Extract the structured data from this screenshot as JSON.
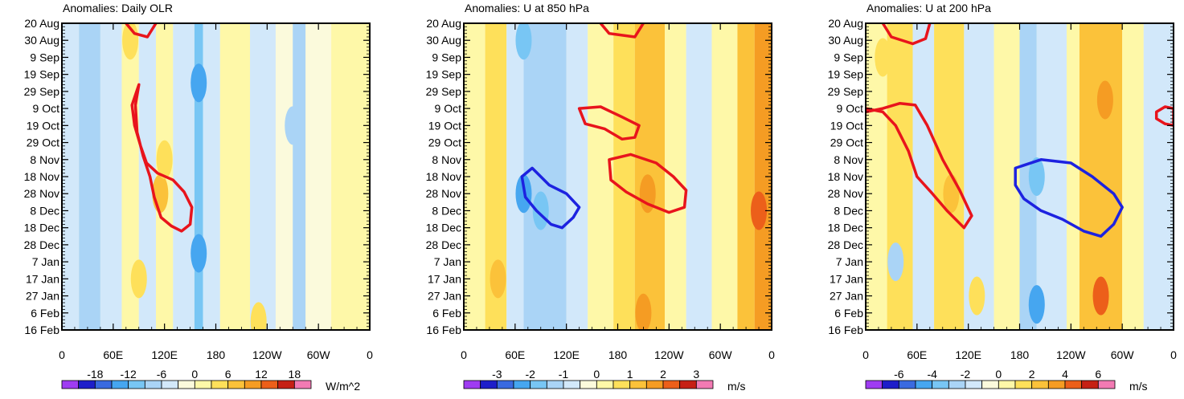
{
  "chart_data": [
    {
      "type": "heatmap",
      "title": "Anomalies: Daily OLR",
      "units": "W/m^2",
      "x_ticks": [
        "0",
        "60E",
        "120E",
        "180",
        "120W",
        "60W",
        "0"
      ],
      "y_ticks": [
        "20 Aug",
        "30 Aug",
        "9 Sep",
        "19 Sep",
        "29 Sep",
        "9 Oct",
        "19 Oct",
        "29 Oct",
        "8 Nov",
        "18 Nov",
        "28 Nov",
        "8 Dec",
        "18 Dec",
        "28 Dec",
        "7 Jan",
        "17 Jan",
        "27 Jan",
        "6 Feb",
        "16 Feb"
      ],
      "x_range_deg": [
        0,
        360
      ],
      "colorbar_labels": [
        "-18",
        "-12",
        "-6",
        "0",
        "6",
        "12",
        "18"
      ],
      "colorbar_levels": [
        -21,
        -18,
        -15,
        -12,
        -9,
        -6,
        -3,
        0,
        3,
        6,
        9,
        12,
        15,
        18,
        21
      ],
      "contour_annotation": "red contours near 60E-150E, Aug to Dec",
      "bands": [
        {
          "lon0": 0,
          "lon1": 20,
          "level": -3
        },
        {
          "lon0": 20,
          "lon1": 45,
          "level": -6
        },
        {
          "lon0": 45,
          "lon1": 70,
          "level": -3
        },
        {
          "lon0": 70,
          "lon1": 90,
          "level": 3
        },
        {
          "lon0": 90,
          "lon1": 110,
          "level": -3
        },
        {
          "lon0": 110,
          "lon1": 130,
          "level": 3
        },
        {
          "lon0": 130,
          "lon1": 155,
          "level": -3
        },
        {
          "lon0": 155,
          "lon1": 165,
          "level": -9
        },
        {
          "lon0": 165,
          "lon1": 185,
          "level": -3
        },
        {
          "lon0": 185,
          "lon1": 220,
          "level": 3
        },
        {
          "lon0": 220,
          "lon1": 250,
          "level": -3
        },
        {
          "lon0": 250,
          "lon1": 270,
          "level": 0
        },
        {
          "lon0": 270,
          "lon1": 285,
          "level": -6
        },
        {
          "lon0": 285,
          "lon1": 315,
          "level": 0
        },
        {
          "lon0": 315,
          "lon1": 360,
          "level": 3
        }
      ],
      "patches": [
        {
          "lon": 160,
          "day": 35,
          "level": -12
        },
        {
          "lon": 160,
          "day": 135,
          "level": -12
        },
        {
          "lon": 115,
          "day": 100,
          "level": 9
        },
        {
          "lon": 120,
          "day": 80,
          "level": 6
        },
        {
          "lon": 80,
          "day": 10,
          "level": 6
        },
        {
          "lon": 90,
          "day": 150,
          "level": 6
        },
        {
          "lon": 270,
          "day": 60,
          "level": -6
        },
        {
          "lon": 230,
          "day": 175,
          "level": 6
        }
      ],
      "contours": [
        {
          "color": "#e8141c",
          "points": [
            [
              75,
              0
            ],
            [
              85,
              6
            ],
            [
              100,
              8
            ],
            [
              110,
              0
            ]
          ]
        },
        {
          "color": "#e8141c",
          "points": [
            [
              90,
              36
            ],
            [
              82,
              48
            ],
            [
              85,
              60
            ],
            [
              92,
              72
            ],
            [
              99,
              82
            ],
            [
              112,
              88
            ],
            [
              130,
              92
            ],
            [
              143,
              99
            ],
            [
              152,
              108
            ],
            [
              150,
              118
            ],
            [
              140,
              122
            ],
            [
              128,
              119
            ],
            [
              116,
              114
            ],
            [
              108,
              102
            ],
            [
              103,
              90
            ],
            [
              95,
              78
            ],
            [
              88,
              64
            ],
            [
              86,
              48
            ]
          ]
        }
      ],
      "days_total": 180
    },
    {
      "type": "heatmap",
      "title": "Anomalies: U at 850 hPa",
      "units": "m/s",
      "x_ticks": [
        "0",
        "60E",
        "120E",
        "180",
        "120W",
        "60W",
        "0"
      ],
      "y_ticks": [
        "20 Aug",
        "30 Aug",
        "9 Sep",
        "19 Sep",
        "29 Sep",
        "9 Oct",
        "19 Oct",
        "29 Oct",
        "8 Nov",
        "18 Nov",
        "28 Nov",
        "8 Dec",
        "18 Dec",
        "28 Dec",
        "7 Jan",
        "17 Jan",
        "27 Jan",
        "6 Feb",
        "16 Feb"
      ],
      "x_range_deg": [
        0,
        360
      ],
      "colorbar_labels": [
        "-3",
        "-2",
        "-1",
        "0",
        "1",
        "2",
        "3"
      ],
      "colorbar_levels": [
        -3.5,
        -3,
        -2.5,
        -2,
        -1.5,
        -1,
        -0.5,
        0,
        0.5,
        1,
        1.5,
        2,
        2.5,
        3,
        3.5
      ],
      "contour_annotation": "red (+) and blue (-) contours",
      "bands": [
        {
          "lon0": 0,
          "lon1": 25,
          "level": 0.5
        },
        {
          "lon0": 25,
          "lon1": 50,
          "level": 1
        },
        {
          "lon0": 50,
          "lon1": 70,
          "level": -0.5
        },
        {
          "lon0": 70,
          "lon1": 120,
          "level": -1
        },
        {
          "lon0": 120,
          "lon1": 145,
          "level": -0.5
        },
        {
          "lon0": 145,
          "lon1": 175,
          "level": 0.5
        },
        {
          "lon0": 175,
          "lon1": 200,
          "level": 1
        },
        {
          "lon0": 200,
          "lon1": 235,
          "level": 1.5
        },
        {
          "lon0": 235,
          "lon1": 260,
          "level": 0.5
        },
        {
          "lon0": 260,
          "lon1": 290,
          "level": -0.5
        },
        {
          "lon0": 290,
          "lon1": 320,
          "level": 0.5
        },
        {
          "lon0": 320,
          "lon1": 340,
          "level": 1.5
        },
        {
          "lon0": 340,
          "lon1": 360,
          "level": 2
        }
      ],
      "patches": [
        {
          "lon": 90,
          "day": 110,
          "level": -1.5
        },
        {
          "lon": 70,
          "day": 100,
          "level": -2
        },
        {
          "lon": 210,
          "day": 170,
          "level": 2
        },
        {
          "lon": 215,
          "day": 100,
          "level": 2
        },
        {
          "lon": 345,
          "day": 110,
          "level": 2.5
        },
        {
          "lon": 350,
          "day": 20,
          "level": 2
        },
        {
          "lon": 40,
          "day": 150,
          "level": 1.5
        },
        {
          "lon": 70,
          "day": 10,
          "level": -1.5
        }
      ],
      "contours": [
        {
          "color": "#e8141c",
          "points": [
            [
              160,
              0
            ],
            [
              170,
              6
            ],
            [
              200,
              8
            ],
            [
              210,
              0
            ]
          ]
        },
        {
          "color": "#e8141c",
          "points": [
            [
              135,
              50
            ],
            [
              160,
              49
            ],
            [
              185,
              55
            ],
            [
              205,
              60
            ],
            [
              200,
              67
            ],
            [
              185,
              68
            ],
            [
              165,
              62
            ],
            [
              142,
              59
            ]
          ]
        },
        {
          "color": "#e8141c",
          "points": [
            [
              170,
              80
            ],
            [
              195,
              77
            ],
            [
              225,
              82
            ],
            [
              245,
              90
            ],
            [
              260,
              98
            ],
            [
              258,
              108
            ],
            [
              240,
              111
            ],
            [
              215,
              106
            ],
            [
              190,
              99
            ],
            [
              172,
              92
            ]
          ]
        },
        {
          "color": "#1d22e0",
          "points": [
            [
              68,
              90
            ],
            [
              80,
              85
            ],
            [
              100,
              95
            ],
            [
              120,
              100
            ],
            [
              135,
              108
            ],
            [
              128,
              114
            ],
            [
              115,
              120
            ],
            [
              102,
              118
            ],
            [
              85,
              110
            ],
            [
              72,
              102
            ]
          ]
        }
      ],
      "days_total": 180
    },
    {
      "type": "heatmap",
      "title": "Anomalies: U at 200 hPa",
      "units": "m/s",
      "x_ticks": [
        "0",
        "60E",
        "120E",
        "180",
        "120W",
        "60W",
        "0"
      ],
      "y_ticks": [
        "20 Aug",
        "30 Aug",
        "9 Sep",
        "19 Sep",
        "29 Sep",
        "9 Oct",
        "19 Oct",
        "29 Oct",
        "8 Nov",
        "18 Nov",
        "28 Nov",
        "8 Dec",
        "18 Dec",
        "28 Dec",
        "7 Jan",
        "17 Jan",
        "27 Jan",
        "6 Feb",
        "16 Feb"
      ],
      "x_range_deg": [
        0,
        360
      ],
      "colorbar_labels": [
        "-6",
        "-4",
        "-2",
        "0",
        "2",
        "4",
        "6"
      ],
      "colorbar_levels": [
        -7,
        -6,
        -5,
        -4,
        -3,
        -2,
        -1,
        0,
        1,
        2,
        3,
        4,
        5,
        6,
        7
      ],
      "contour_annotation": "red (+) and blue (-) contours",
      "bands": [
        {
          "lon0": 0,
          "lon1": 25,
          "level": 1
        },
        {
          "lon0": 25,
          "lon1": 55,
          "level": 2
        },
        {
          "lon0": 55,
          "lon1": 80,
          "level": -1
        },
        {
          "lon0": 80,
          "lon1": 115,
          "level": 2
        },
        {
          "lon0": 115,
          "lon1": 150,
          "level": -1
        },
        {
          "lon0": 150,
          "lon1": 180,
          "level": 1
        },
        {
          "lon0": 180,
          "lon1": 200,
          "level": -2
        },
        {
          "lon0": 200,
          "lon1": 235,
          "level": -1
        },
        {
          "lon0": 235,
          "lon1": 250,
          "level": 1
        },
        {
          "lon0": 250,
          "lon1": 300,
          "level": 3
        },
        {
          "lon0": 300,
          "lon1": 325,
          "level": 1
        },
        {
          "lon0": 325,
          "lon1": 360,
          "level": -1
        }
      ],
      "patches": [
        {
          "lon": 280,
          "day": 45,
          "level": 4
        },
        {
          "lon": 275,
          "day": 160,
          "level": 5
        },
        {
          "lon": 200,
          "day": 165,
          "level": -4
        },
        {
          "lon": 200,
          "day": 90,
          "level": -3
        },
        {
          "lon": 100,
          "day": 100,
          "level": 3
        },
        {
          "lon": 20,
          "day": 20,
          "level": 2
        },
        {
          "lon": 35,
          "day": 140,
          "level": -2
        },
        {
          "lon": 130,
          "day": 160,
          "level": 2
        }
      ],
      "contours": [
        {
          "color": "#e8141c",
          "points": [
            [
              20,
              0
            ],
            [
              30,
              8
            ],
            [
              55,
              12
            ],
            [
              70,
              9
            ],
            [
              75,
              0
            ]
          ]
        },
        {
          "color": "#e8141c",
          "points": [
            [
              0,
              50
            ],
            [
              20,
              52
            ],
            [
              35,
              60
            ],
            [
              50,
              75
            ],
            [
              60,
              90
            ],
            [
              78,
              100
            ],
            [
              95,
              110
            ],
            [
              115,
              120
            ],
            [
              124,
              113
            ],
            [
              110,
              98
            ],
            [
              90,
              80
            ],
            [
              72,
              60
            ],
            [
              58,
              48
            ],
            [
              40,
              47
            ],
            [
              20,
              50
            ],
            [
              0,
              52
            ]
          ]
        },
        {
          "color": "#e8141c",
          "points": [
            [
              340,
              52
            ],
            [
              350,
              49
            ],
            [
              360,
              50
            ],
            [
              360,
              60
            ],
            [
              350,
              59
            ],
            [
              340,
              56
            ]
          ]
        },
        {
          "color": "#1d22e0",
          "points": [
            [
              175,
              85
            ],
            [
              205,
              80
            ],
            [
              240,
              82
            ],
            [
              265,
              90
            ],
            [
              290,
              100
            ],
            [
              300,
              108
            ],
            [
              290,
              118
            ],
            [
              275,
              125
            ],
            [
              255,
              122
            ],
            [
              230,
              115
            ],
            [
              205,
              110
            ],
            [
              185,
              103
            ],
            [
              175,
              95
            ]
          ]
        }
      ],
      "days_total": 180
    }
  ],
  "palette": [
    "#9f3cf2",
    "#1e1eca",
    "#3a6ae0",
    "#46a6f0",
    "#78c6f4",
    "#aad4f6",
    "#d2e8fa",
    "#fbfadc",
    "#fef8a8",
    "#fee05a",
    "#fbc23a",
    "#f59c23",
    "#ec5f1a",
    "#c62014",
    "#f27ab3"
  ]
}
